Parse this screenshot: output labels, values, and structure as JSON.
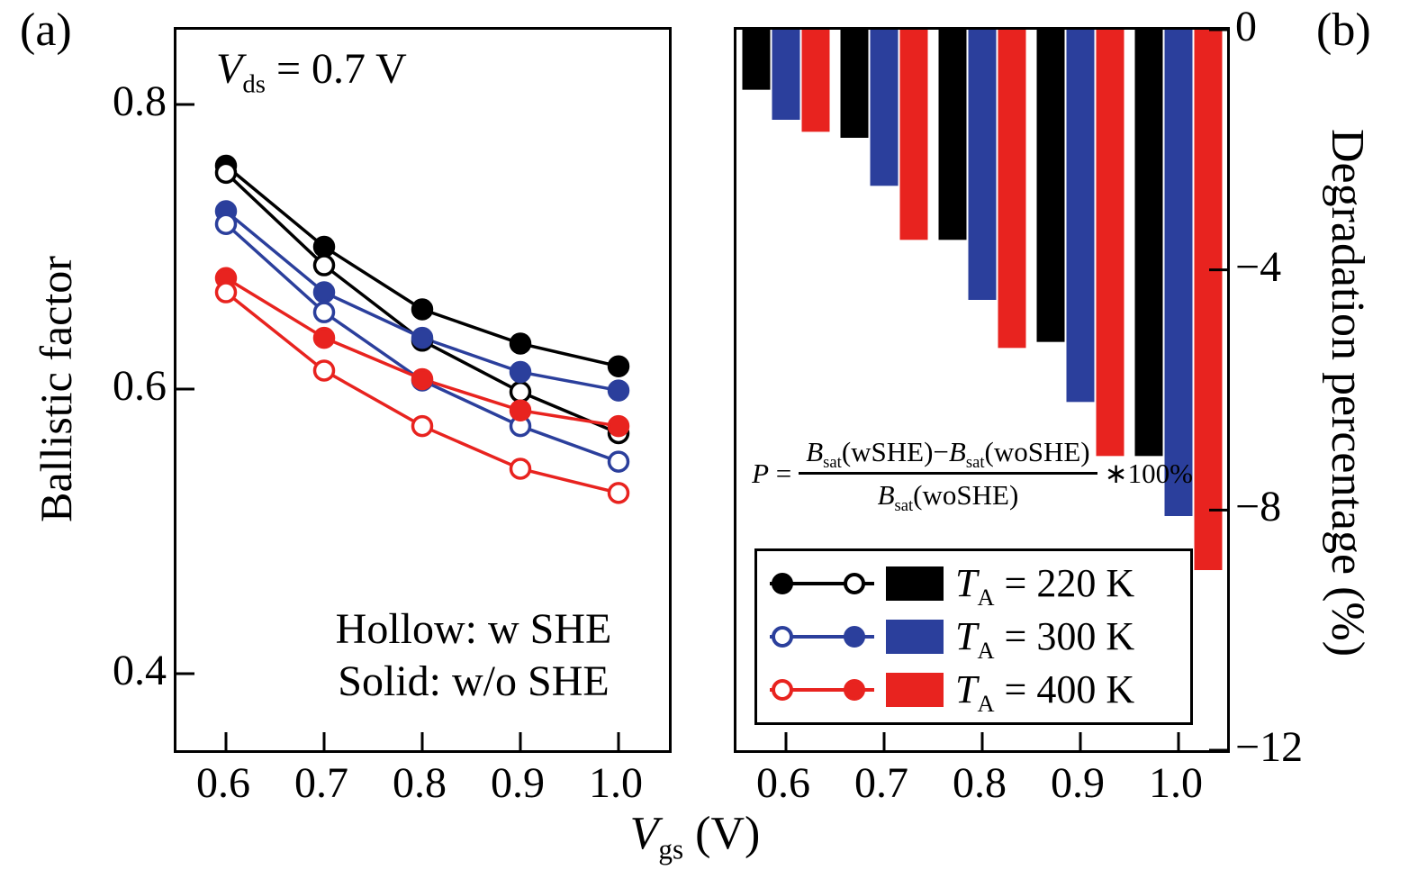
{
  "panels": {
    "a": {
      "label": "(a)"
    },
    "b": {
      "label": "(b)"
    }
  },
  "xlabel": {
    "base": "V",
    "sub": "gs",
    "rest": " (V)"
  },
  "formula": {
    "lhs_base": "P",
    "lhs_eq": " = ",
    "num1_base": "B",
    "num1_sub": "sat",
    "num1_rest": "(wSHE)−",
    "num2_base": "B",
    "num2_sub": "sat",
    "num2_rest": "(woSHE)",
    "den_base": "B",
    "den_sub": "sat",
    "den_rest": "(woSHE)",
    "tail": "∗100%"
  },
  "legend": {
    "rows": [
      {
        "first": "filled",
        "second": "hollow",
        "color": "#000000",
        "base": "T",
        "sub": "A",
        "rest": " = 220 K"
      },
      {
        "first": "hollow",
        "second": "filled",
        "color": "#2b3f9c",
        "base": "T",
        "sub": "A",
        "rest": " = 300 K"
      },
      {
        "first": "hollow",
        "second": "filled",
        "color": "#e8231f",
        "base": "T",
        "sub": "A",
        "rest": " = 400 K"
      }
    ]
  },
  "chart_data": [
    {
      "type": "line",
      "panel": "a",
      "x": [
        0.6,
        0.7,
        0.8,
        0.9,
        1.0
      ],
      "xtick_labels": [
        "0.6",
        "0.7",
        "0.8",
        "0.9",
        "1.0"
      ],
      "xlabel": "Vgs (V)",
      "ylabel": "Ballistic factor",
      "ylim": [
        0.35,
        0.84
      ],
      "yticks": [
        0.4,
        0.6,
        0.8
      ],
      "ytick_labels": [
        "0.4",
        "0.6",
        "0.8"
      ],
      "annotation_parts": {
        "base": "V",
        "sub": "ds",
        "rest": " = 0.7 V"
      },
      "notes": {
        "hollow": "Hollow: w SHE",
        "solid": "Solid: w/o SHE"
      },
      "series": [
        {
          "name": "TA = 220 K, w/o SHE (solid)",
          "color": "#000000",
          "marker": "filled",
          "values": [
            0.757,
            0.7,
            0.656,
            0.632,
            0.616
          ]
        },
        {
          "name": "TA = 220 K, w SHE (hollow)",
          "color": "#000000",
          "marker": "hollow",
          "values": [
            0.752,
            0.687,
            0.634,
            0.598,
            0.569
          ]
        },
        {
          "name": "TA = 300 K, w/o SHE (solid)",
          "color": "#2b3f9c",
          "marker": "filled",
          "values": [
            0.725,
            0.668,
            0.636,
            0.612,
            0.599
          ]
        },
        {
          "name": "TA = 300 K, w SHE (hollow)",
          "color": "#2b3f9c",
          "marker": "hollow",
          "values": [
            0.716,
            0.654,
            0.606,
            0.574,
            0.549
          ]
        },
        {
          "name": "TA = 400 K, w/o SHE (solid)",
          "color": "#e8231f",
          "marker": "filled",
          "values": [
            0.678,
            0.636,
            0.607,
            0.585,
            0.574
          ]
        },
        {
          "name": "TA = 400 K, w SHE (hollow)",
          "color": "#e8231f",
          "marker": "hollow",
          "values": [
            0.668,
            0.613,
            0.574,
            0.544,
            0.527
          ]
        }
      ]
    },
    {
      "type": "bar",
      "panel": "b",
      "categories": [
        "0.6",
        "0.7",
        "0.8",
        "0.9",
        "1.0"
      ],
      "ylabel": "Degradation percentage (%)",
      "ylim": [
        -12,
        0
      ],
      "yticks": [
        0,
        -4,
        -8,
        -12
      ],
      "ytick_labels": [
        "0",
        "−4",
        "−8",
        "−12"
      ],
      "series": [
        {
          "name": "TA = 220 K",
          "color": "#000000",
          "values": [
            -1.0,
            -1.8,
            -3.5,
            -5.2,
            -7.1
          ]
        },
        {
          "name": "TA = 300 K",
          "color": "#2b3f9c",
          "values": [
            -1.5,
            -2.6,
            -4.5,
            -6.2,
            -8.1
          ]
        },
        {
          "name": "TA = 400 K",
          "color": "#e8231f",
          "values": [
            -1.7,
            -3.5,
            -5.3,
            -7.1,
            -9.0
          ]
        }
      ]
    }
  ]
}
